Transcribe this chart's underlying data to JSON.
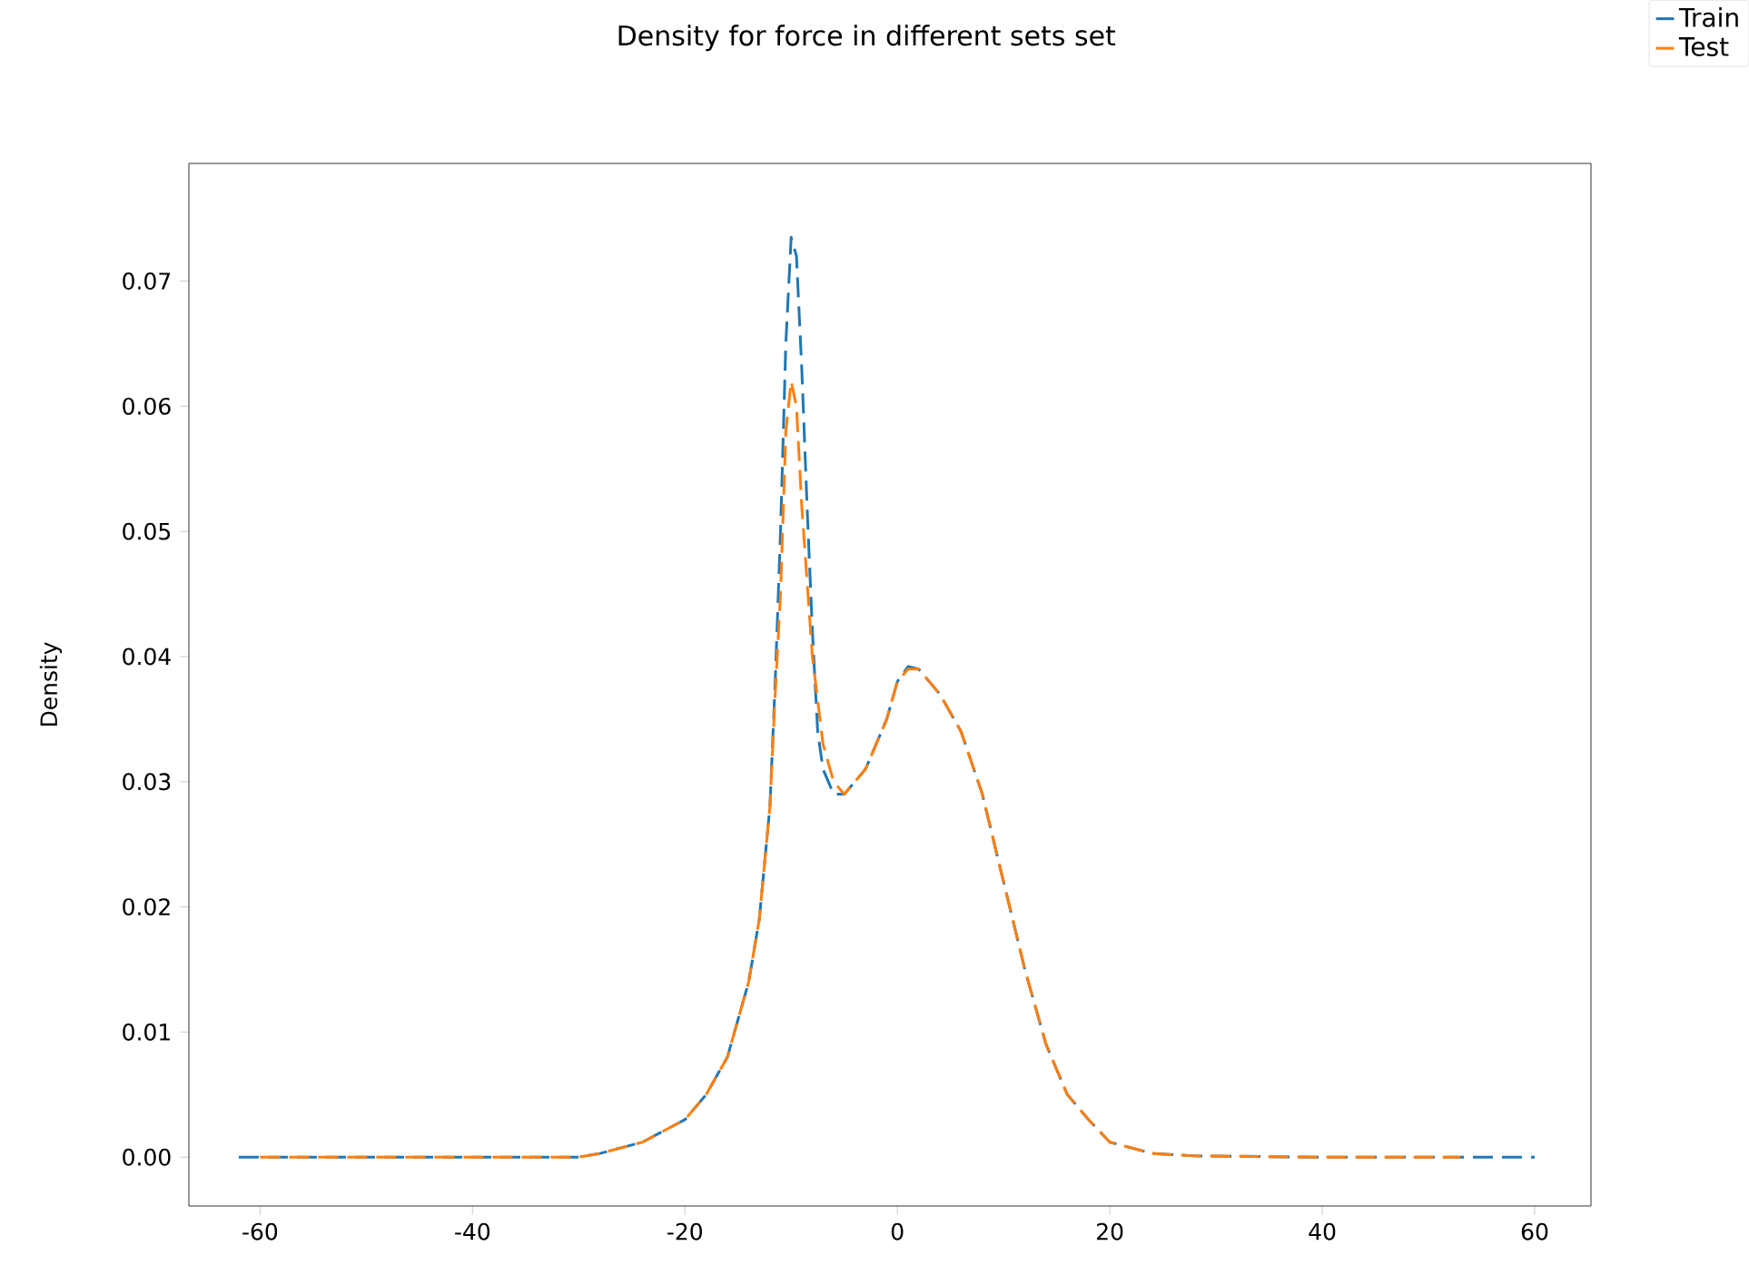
{
  "chart_data": {
    "type": "line",
    "title": "Density for force in different sets set",
    "ylabel": "Density",
    "xlim": [
      -66.7,
      65.3
    ],
    "ylim": [
      -0.0039,
      0.0794
    ],
    "xticks": [
      -60,
      -40,
      -20,
      0,
      20,
      40,
      60
    ],
    "yticks": [
      {
        "value": 0,
        "label": "0.00"
      },
      {
        "value": 0.01,
        "label": "0.01"
      },
      {
        "value": 0.02,
        "label": "0.02"
      },
      {
        "value": 0.03,
        "label": "0.03"
      },
      {
        "value": 0.04,
        "label": "0.04"
      },
      {
        "value": 0.05,
        "label": "0.05"
      },
      {
        "value": 0.06,
        "label": "0.06"
      },
      {
        "value": 0.07,
        "label": "0.07"
      }
    ],
    "line_style": "dashed",
    "legend": "top right",
    "grid": false,
    "series": [
      {
        "name": "Train",
        "color": "#1f77b4",
        "x": [
          -62,
          -40,
          -30,
          -28,
          -24,
          -20,
          -18,
          -16,
          -14,
          -13,
          -12,
          -11.5,
          -11,
          -10.5,
          -10,
          -9.5,
          -9,
          -8.5,
          -8,
          -7.5,
          -7,
          -6,
          -5,
          -3,
          -1,
          0,
          1,
          2,
          4,
          6,
          8,
          10,
          12,
          14,
          16,
          18,
          20,
          24,
          28,
          40,
          60
        ],
        "values": [
          0,
          0,
          0,
          0.0003,
          0.0012,
          0.003,
          0.005,
          0.008,
          0.014,
          0.019,
          0.028,
          0.038,
          0.05,
          0.065,
          0.0735,
          0.072,
          0.063,
          0.052,
          0.042,
          0.034,
          0.031,
          0.029,
          0.029,
          0.031,
          0.035,
          0.038,
          0.0392,
          0.039,
          0.037,
          0.034,
          0.029,
          0.022,
          0.015,
          0.009,
          0.005,
          0.003,
          0.0012,
          0.0003,
          0.0001,
          0,
          0
        ]
      },
      {
        "name": "Test",
        "color": "#ff7f0e",
        "x": [
          -60,
          -40,
          -30,
          -28,
          -24,
          -20,
          -18,
          -16,
          -14,
          -13,
          -12,
          -11.5,
          -11,
          -10.5,
          -10,
          -9.5,
          -9,
          -8,
          -7,
          -6,
          -5,
          -4,
          -3,
          -1,
          0,
          1,
          2,
          4,
          6,
          8,
          10,
          12,
          14,
          16,
          18,
          20,
          24,
          28,
          40,
          53
        ],
        "values": [
          0,
          0,
          0,
          0.0003,
          0.0012,
          0.003,
          0.005,
          0.008,
          0.014,
          0.019,
          0.028,
          0.037,
          0.045,
          0.058,
          0.062,
          0.06,
          0.052,
          0.04,
          0.033,
          0.03,
          0.029,
          0.03,
          0.031,
          0.035,
          0.038,
          0.039,
          0.039,
          0.037,
          0.034,
          0.029,
          0.022,
          0.015,
          0.009,
          0.005,
          0.003,
          0.0012,
          0.0003,
          0.0001,
          0,
          0
        ]
      }
    ]
  }
}
